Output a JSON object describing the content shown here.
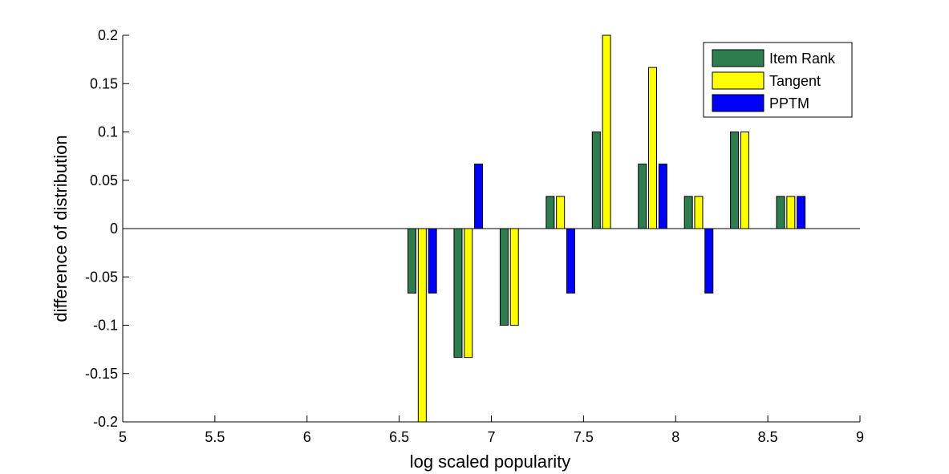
{
  "chart_data": {
    "type": "bar",
    "title": "",
    "xlabel": "log scaled popularity",
    "ylabel": "difference of distribution",
    "xlim": [
      5,
      9
    ],
    "ylim": [
      -0.2,
      0.2
    ],
    "xticks": [
      "5",
      "5.5",
      "6",
      "6.5",
      "7",
      "7.5",
      "8",
      "8.5",
      "9"
    ],
    "yticks": [
      "-0.2",
      "-0.15",
      "-0.1",
      "-0.05",
      "0",
      "0.05",
      "0.1",
      "0.15",
      "0.2"
    ],
    "x": [
      6.625,
      6.875,
      7.125,
      7.375,
      7.625,
      7.875,
      8.125,
      8.375,
      8.625
    ],
    "series": [
      {
        "name": "Item Rank",
        "color": "#2e7d4f",
        "values": [
          -0.0667,
          -0.1333,
          -0.1,
          0.0333,
          0.1,
          0.0667,
          0.0333,
          0.1,
          0.0333
        ]
      },
      {
        "name": "Tangent",
        "color": "#ffff00",
        "values": [
          -0.2,
          -0.1333,
          -0.1,
          0.0333,
          0.2,
          0.1667,
          0.0333,
          0.1,
          0.0333
        ]
      },
      {
        "name": "PPTM",
        "color": "#0000ff",
        "values": [
          -0.0667,
          0.0667,
          0,
          -0.0667,
          0,
          0.0667,
          -0.0667,
          0,
          0.0333
        ]
      }
    ],
    "legend_position": "top-right",
    "grid": false
  }
}
